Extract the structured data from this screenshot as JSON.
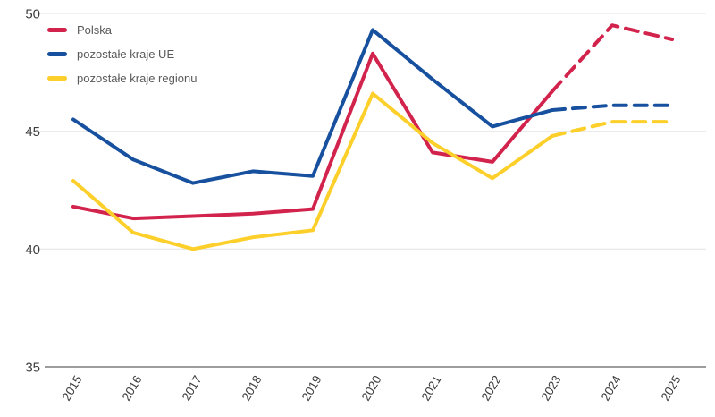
{
  "chart_data": {
    "type": "line",
    "title": "",
    "x": [
      2015,
      2016,
      2017,
      2018,
      2019,
      2020,
      2021,
      2022,
      2023,
      2024,
      2025
    ],
    "series": [
      {
        "name": "Polska",
        "color": "#d2234c",
        "values": [
          41.8,
          41.3,
          41.4,
          41.5,
          41.7,
          48.3,
          44.1,
          43.7,
          46.7,
          49.5,
          48.9
        ],
        "solid_until_index": 8,
        "style_after": "dashed"
      },
      {
        "name": "pozostałe kraje UE",
        "color": "#16509e",
        "values": [
          45.5,
          43.8,
          42.8,
          43.3,
          43.1,
          49.3,
          47.2,
          45.2,
          45.9,
          46.1,
          46.1
        ],
        "solid_until_index": 8,
        "style_after": "dashed"
      },
      {
        "name": "pozostałe kraje regionu",
        "color": "#fccf2b",
        "values": [
          42.9,
          40.7,
          40.0,
          40.5,
          40.8,
          46.6,
          44.5,
          43.0,
          44.8,
          45.4,
          45.4
        ],
        "solid_until_index": 8,
        "style_after": "dashed"
      }
    ],
    "ylim": [
      35,
      50
    ],
    "yticks": [
      35,
      40,
      45,
      50
    ],
    "x_tick_labels": [
      "2015",
      "2016",
      "2017",
      "2018",
      "2019",
      "2020",
      "2021",
      "2022",
      "2023",
      "2024",
      "2025"
    ],
    "y_tick_labels": [
      "35",
      "40",
      "45",
      "50"
    ],
    "baseline_value": 35,
    "grid": "horizontal gridlines at 40, 45, 50",
    "legend_position": "top-left",
    "legend_labels": [
      "Polska",
      "pozostałe kraje UE",
      "pozostałe kraje regionu"
    ]
  },
  "style": {
    "grid_color": "#eaeaea",
    "axis_color": "#9c9c9c",
    "tick_label_color": "#3d3d3d",
    "legend_text_color": "#595959",
    "background": "#ffffff"
  }
}
